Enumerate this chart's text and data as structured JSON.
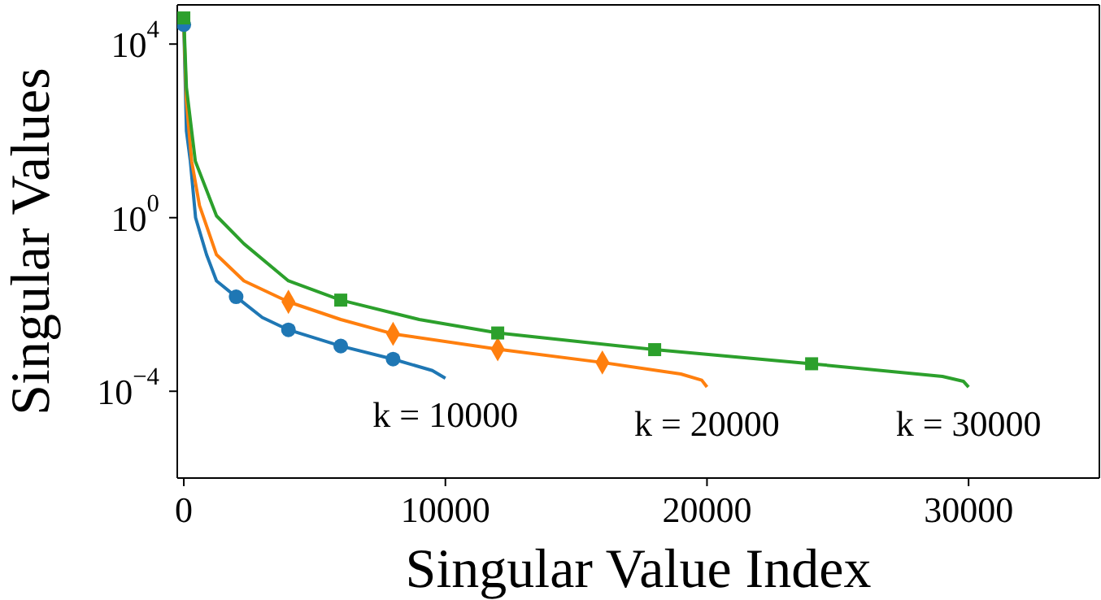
{
  "chart_data": {
    "type": "line",
    "xlabel": "Singular Value Index",
    "ylabel": "Singular Values",
    "log": "y",
    "xlim": [
      -250,
      35000
    ],
    "xticks": [
      0,
      10000,
      20000,
      30000
    ],
    "ylim": [
      1e-06,
      80000
    ],
    "yticks": [
      {
        "value": 10000,
        "label": "10$^{4}$"
      },
      {
        "value": 1,
        "label": "10$^{0}$"
      },
      {
        "value": 0.0001,
        "label": "10$^{−4}$"
      }
    ],
    "series": [
      {
        "color": "#1f77b4",
        "x": [
          0,
          100,
          250,
          450,
          870,
          1250,
          2000,
          3000,
          4000,
          6000,
          8000,
          9500,
          10000
        ],
        "values": [
          28000,
          100,
          20,
          1,
          0.14,
          0.035,
          0.015,
          0.005,
          0.0026,
          0.0011,
          0.00055,
          0.0003,
          0.0002
        ]
      },
      {
        "color": "#ff7f0e",
        "x": [
          0,
          100,
          300,
          600,
          1250,
          2300,
          4000,
          6000,
          8000,
          12000,
          16000,
          19000,
          19800,
          20000
        ],
        "values": [
          30000,
          500,
          20,
          1.9,
          0.14,
          0.035,
          0.0115,
          0.0045,
          0.0021,
          0.00093,
          0.00046,
          0.00025,
          0.00018,
          0.000125
        ]
      },
      {
        "color": "#2ca02c",
        "x": [
          0,
          100,
          440,
          1250,
          2300,
          4000,
          6000,
          9000,
          12000,
          18000,
          24000,
          29000,
          29800,
          30000
        ],
        "values": [
          40000,
          1000,
          20,
          1.1,
          0.25,
          0.035,
          0.0126,
          0.0045,
          0.0022,
          0.00091,
          0.00043,
          0.00022,
          0.00017,
          0.000125
        ]
      },
      {
        "type": "scatter",
        "marker": "circle",
        "color": "#1f77b4",
        "x": [
          0,
          2000,
          4000,
          6000,
          8000
        ],
        "values": [
          28000,
          0.015,
          0.0026,
          0.0011,
          0.00055
        ]
      },
      {
        "type": "scatter",
        "marker": "diamond",
        "color": "#ff7f0e",
        "x": [
          4000,
          8000,
          12000,
          16000
        ],
        "values": [
          0.0115,
          0.0021,
          0.00093,
          0.00046
        ]
      },
      {
        "type": "scatter",
        "marker": "square",
        "color": "#2ca02c",
        "x": [
          0,
          6000,
          12000,
          18000,
          24000
        ],
        "values": [
          40000,
          0.0126,
          0.0022,
          0.00091,
          0.00043
        ]
      }
    ],
    "annotations": [
      "k = 10000",
      "k = 20000",
      "k = 30000"
    ]
  }
}
